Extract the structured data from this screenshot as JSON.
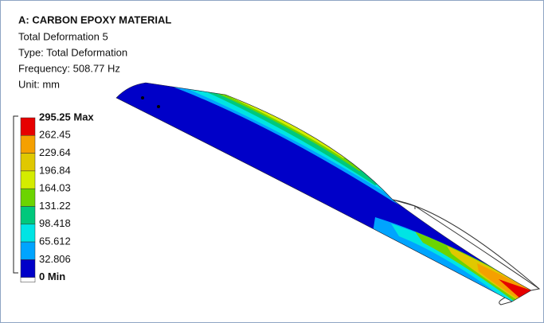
{
  "header": {
    "title": "A: CARBON EPOXY MATERIAL",
    "lines": [
      "Total Deformation 5",
      "Type: Total Deformation",
      "Frequency: 508.77 Hz",
      "Unit: mm"
    ]
  },
  "legend": {
    "labels": [
      "295.25 Max",
      "262.45",
      "229.64",
      "196.84",
      "164.03",
      "131.22",
      "98.418",
      "65.612",
      "32.806",
      "0 Min"
    ],
    "colors": [
      "#e60000",
      "#f5a000",
      "#e0c800",
      "#d4ec00",
      "#6cd400",
      "#00c87c",
      "#00e4e4",
      "#00a4ff",
      "#0000c8"
    ]
  }
}
